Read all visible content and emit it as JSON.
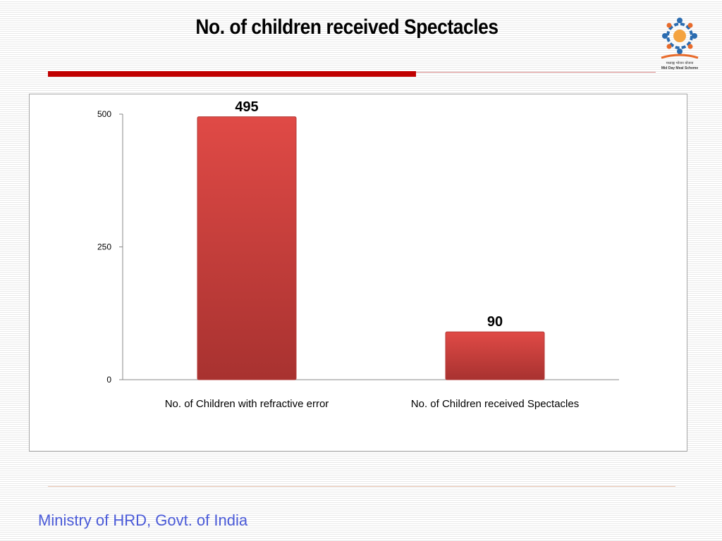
{
  "slide": {
    "title": "No. of children received Spectacles",
    "footer": "Ministry of HRD, Govt. of India",
    "accent_color": "#c00000"
  },
  "logo": {
    "icon": "mid-day-meal-logo",
    "text_hindi": "मध्याह्न भोजन योजना",
    "text_english": "Mid Day Meal Scheme"
  },
  "chart_data": {
    "type": "bar",
    "categories": [
      "No. of Children with refractive error",
      "No. of Children received Spectacles"
    ],
    "values": [
      495,
      90
    ],
    "data_labels": [
      "495",
      "90"
    ],
    "ylim": [
      0,
      500
    ],
    "yticks": [
      0,
      250,
      500
    ],
    "ytick_labels": [
      "0",
      "250",
      "500"
    ],
    "grid": false,
    "legend": "none",
    "bar_color": "#d9403c"
  }
}
